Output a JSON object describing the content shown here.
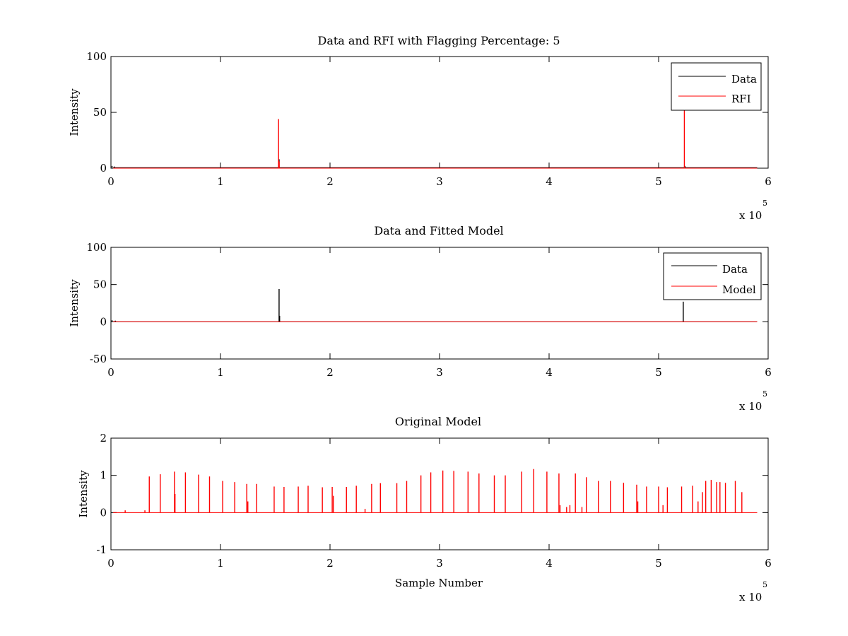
{
  "colors": {
    "data": "#000000",
    "rfi": "#ff0000",
    "model": "#ff0000",
    "axes": "#000000",
    "background": "#ffffff"
  },
  "chart_data": [
    {
      "type": "line",
      "title": "Data and RFI with Flagging Percentage: 5",
      "xlabel": "",
      "ylabel": "Intensity",
      "xlim": [
        0,
        600000
      ],
      "ylim": [
        0,
        100
      ],
      "x_ticks": [
        0,
        1,
        2,
        3,
        4,
        5,
        6
      ],
      "x_tick_labels": [
        "0",
        "1",
        "2",
        "3",
        "4",
        "5",
        "6"
      ],
      "y_ticks": [
        0,
        50,
        100
      ],
      "y_tick_labels": [
        "0",
        "50",
        "100"
      ],
      "x_exponent_label": "x 10",
      "x_exponent": "5",
      "legend_position": "top-right",
      "series": [
        {
          "name": "Data",
          "color": "#000000",
          "baseline": 0.5,
          "spikes": [
            [
              1000,
              2.0
            ],
            [
              3000,
              1.5
            ],
            [
              153500,
              8
            ],
            [
              524000,
              2
            ]
          ]
        },
        {
          "name": "RFI",
          "color": "#ff0000",
          "baseline": 0,
          "spikes": [
            [
              153000,
              44
            ],
            [
              153600,
              6
            ],
            [
              523500,
              57
            ]
          ]
        }
      ]
    },
    {
      "type": "line",
      "title": "Data and Fitted Model",
      "xlabel": "",
      "ylabel": "Intensity",
      "xlim": [
        0,
        600000
      ],
      "ylim": [
        -50,
        100
      ],
      "x_ticks": [
        0,
        1,
        2,
        3,
        4,
        5,
        6
      ],
      "x_tick_labels": [
        "0",
        "1",
        "2",
        "3",
        "4",
        "5",
        "6"
      ],
      "y_ticks": [
        -50,
        0,
        50,
        100
      ],
      "y_tick_labels": [
        "-50",
        "0",
        "50",
        "100"
      ],
      "x_exponent_label": "x 10",
      "x_exponent": "5",
      "legend_position": "top-right",
      "series": [
        {
          "name": "Data",
          "color": "#000000",
          "baseline": 0,
          "spikes": [
            [
              1000,
              2
            ],
            [
              4000,
              1.5
            ],
            [
              153500,
              44
            ],
            [
              154000,
              8
            ],
            [
              522500,
              27
            ]
          ]
        },
        {
          "name": "Model",
          "color": "#ff0000",
          "baseline": 0,
          "spikes": []
        }
      ]
    },
    {
      "type": "line",
      "title": "Original Model",
      "xlabel": "Sample Number",
      "ylabel": "Intensity",
      "xlim": [
        0,
        600000
      ],
      "ylim": [
        -1,
        2
      ],
      "x_ticks": [
        0,
        1,
        2,
        3,
        4,
        5,
        6
      ],
      "x_tick_labels": [
        "0",
        "1",
        "2",
        "3",
        "4",
        "5",
        "6"
      ],
      "y_ticks": [
        -1,
        0,
        1,
        2
      ],
      "y_tick_labels": [
        "-1",
        "0",
        "1",
        "2"
      ],
      "x_exponent_label": "x 10",
      "x_exponent": "5",
      "legend_position": "none",
      "series": [
        {
          "name": "",
          "color": "#ff0000",
          "baseline": 0,
          "spikes": [
            [
              13000,
              0.06
            ],
            [
              31000,
              0.06
            ],
            [
              35000,
              0.97
            ],
            [
              45000,
              1.03
            ],
            [
              58000,
              1.1
            ],
            [
              58500,
              0.5
            ],
            [
              68000,
              1.08
            ],
            [
              80000,
              1.02
            ],
            [
              90000,
              0.97
            ],
            [
              102000,
              0.85
            ],
            [
              113000,
              0.82
            ],
            [
              124000,
              0.77
            ],
            [
              125000,
              0.3
            ],
            [
              133000,
              0.77
            ],
            [
              149000,
              0.7
            ],
            [
              158000,
              0.69
            ],
            [
              171000,
              0.7
            ],
            [
              180000,
              0.72
            ],
            [
              193000,
              0.68
            ],
            [
              202000,
              0.69
            ],
            [
              203000,
              0.45
            ],
            [
              215000,
              0.69
            ],
            [
              224000,
              0.72
            ],
            [
              232000,
              0.1
            ],
            [
              238000,
              0.77
            ],
            [
              246000,
              0.79
            ],
            [
              261000,
              0.79
            ],
            [
              270000,
              0.85
            ],
            [
              283000,
              1.0
            ],
            [
              292000,
              1.08
            ],
            [
              303000,
              1.13
            ],
            [
              313000,
              1.12
            ],
            [
              326000,
              1.1
            ],
            [
              336000,
              1.05
            ],
            [
              350000,
              1.0
            ],
            [
              360000,
              1.0
            ],
            [
              375000,
              1.1
            ],
            [
              386000,
              1.17
            ],
            [
              398000,
              1.1
            ],
            [
              409000,
              1.05
            ],
            [
              410000,
              0.2
            ],
            [
              416000,
              0.15
            ],
            [
              419000,
              0.2
            ],
            [
              424000,
              1.05
            ],
            [
              430000,
              0.15
            ],
            [
              434000,
              0.95
            ],
            [
              445000,
              0.85
            ],
            [
              456000,
              0.85
            ],
            [
              468000,
              0.8
            ],
            [
              480000,
              0.75
            ],
            [
              481000,
              0.3
            ],
            [
              489000,
              0.7
            ],
            [
              500000,
              0.7
            ],
            [
              504000,
              0.2
            ],
            [
              508000,
              0.68
            ],
            [
              521000,
              0.7
            ],
            [
              531000,
              0.72
            ],
            [
              536000,
              0.3
            ],
            [
              540000,
              0.55
            ],
            [
              543000,
              0.85
            ],
            [
              548000,
              0.88
            ],
            [
              553000,
              0.82
            ],
            [
              556000,
              0.82
            ],
            [
              561000,
              0.8
            ],
            [
              570000,
              0.85
            ],
            [
              576000,
              0.55
            ]
          ]
        }
      ]
    }
  ]
}
